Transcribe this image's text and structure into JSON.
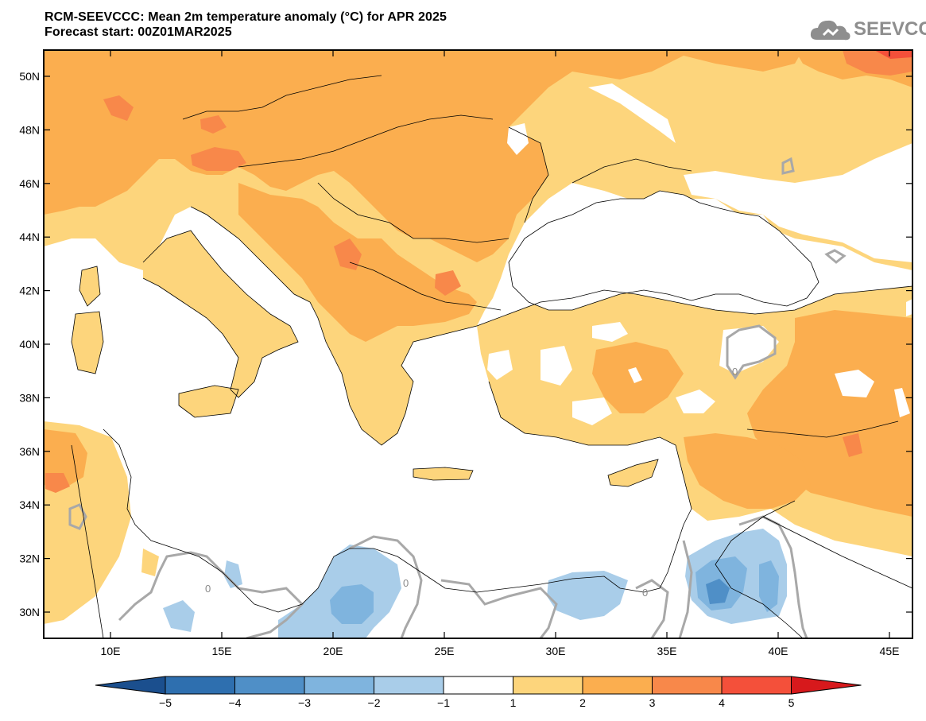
{
  "header": {
    "title_line1": "RCM-SEEVCCC: Mean 2m temperature anomaly (°C) for APR 2025",
    "title_line2": "Forecast start: 00Z01MAR2025"
  },
  "logo": {
    "text": "SEEVCCC",
    "icon": "cloud-icon"
  },
  "map": {
    "lat_labels": [
      "50N",
      "48N",
      "46N",
      "44N",
      "42N",
      "40N",
      "38N",
      "36N",
      "34N",
      "32N",
      "30N"
    ],
    "lon_labels": [
      "10E",
      "15E",
      "20E",
      "25E",
      "30E",
      "35E",
      "40E",
      "45E"
    ],
    "contour_labels": [
      "0",
      "0",
      "0",
      "0"
    ]
  },
  "colorbar": {
    "labels": [
      "−5",
      "−4",
      "−3",
      "−2",
      "−1",
      "1",
      "2",
      "3",
      "4",
      "5"
    ],
    "colors": [
      "#1b4f8e",
      "#2e6faf",
      "#4f8fc7",
      "#7fb4de",
      "#a9cde9",
      "#ffffff",
      "#fdd57c",
      "#fbae4f",
      "#f8884a",
      "#f4503a",
      "#d7191c"
    ]
  }
}
